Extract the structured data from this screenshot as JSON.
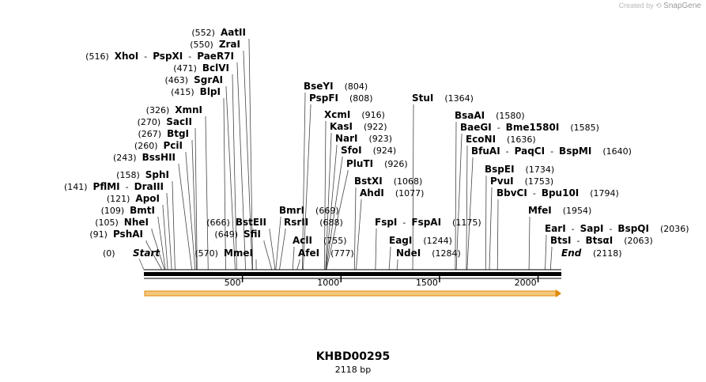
{
  "credit": {
    "prefix": "Created by",
    "brand": "SnapGene"
  },
  "sequence": {
    "name": "KHBD00295",
    "length_label": "2118 bp",
    "length": 2118
  },
  "axis": {
    "ticks": [
      500,
      1000,
      1500,
      2000
    ],
    "start_label": "Start",
    "start_pos": "(0)",
    "end_label": "End",
    "end_pos": "(2118)"
  },
  "feature": {
    "color": "#f5c77e",
    "outline": "#e08a00"
  },
  "labels": [
    {
      "names": [
        "PshAI"
      ],
      "pos": "(91)",
      "side": "left"
    },
    {
      "names": [
        "NheI"
      ],
      "pos": "(105)",
      "side": "left"
    },
    {
      "names": [
        "BmtI"
      ],
      "pos": "(109)",
      "side": "left"
    },
    {
      "names": [
        "ApoI"
      ],
      "pos": "(121)",
      "side": "left"
    },
    {
      "names": [
        "PflMI",
        "DraIII"
      ],
      "pos": "(141)",
      "side": "left"
    },
    {
      "names": [
        "SphI"
      ],
      "pos": "(158)",
      "side": "left"
    },
    {
      "names": [
        "BssHII"
      ],
      "pos": "(243)",
      "side": "left"
    },
    {
      "names": [
        "PciI"
      ],
      "pos": "(260)",
      "side": "left"
    },
    {
      "names": [
        "BtgI"
      ],
      "pos": "(267)",
      "side": "left"
    },
    {
      "names": [
        "SacII"
      ],
      "pos": "(270)",
      "side": "left"
    },
    {
      "names": [
        "XmnI"
      ],
      "pos": "(326)",
      "side": "left"
    },
    {
      "names": [
        "BlpI"
      ],
      "pos": "(415)",
      "side": "left"
    },
    {
      "names": [
        "SgrAI"
      ],
      "pos": "(463)",
      "side": "left"
    },
    {
      "names": [
        "BclVI"
      ],
      "pos": "(471)",
      "side": "left"
    },
    {
      "names": [
        "XhoI",
        "PspXI",
        "PaeR7I"
      ],
      "pos": "(516)",
      "side": "left"
    },
    {
      "names": [
        "ZraI"
      ],
      "pos": "(550)",
      "side": "left"
    },
    {
      "names": [
        "AatII"
      ],
      "pos": "(552)",
      "side": "left"
    },
    {
      "names": [
        "MmeI"
      ],
      "pos": "(570)",
      "side": "left"
    },
    {
      "names": [
        "SfiI"
      ],
      "pos": "(649)",
      "side": "left"
    },
    {
      "names": [
        "BstEII"
      ],
      "pos": "(666)",
      "side": "left"
    },
    {
      "names": [
        "BmrI"
      ],
      "pos": "(669)",
      "side": "right"
    },
    {
      "names": [
        "RsrII"
      ],
      "pos": "(688)",
      "side": "right"
    },
    {
      "names": [
        "AclI"
      ],
      "pos": "(755)",
      "side": "right"
    },
    {
      "names": [
        "AfeI"
      ],
      "pos": "(777)",
      "side": "right"
    },
    {
      "names": [
        "BseYI"
      ],
      "pos": "(804)",
      "side": "right"
    },
    {
      "names": [
        "PspFI"
      ],
      "pos": "(808)",
      "side": "right"
    },
    {
      "names": [
        "XcmI"
      ],
      "pos": "(916)",
      "side": "right"
    },
    {
      "names": [
        "KasI"
      ],
      "pos": "(922)",
      "side": "right"
    },
    {
      "names": [
        "NarI"
      ],
      "pos": "(923)",
      "side": "right"
    },
    {
      "names": [
        "SfoI"
      ],
      "pos": "(924)",
      "side": "right"
    },
    {
      "names": [
        "PluTI"
      ],
      "pos": "(926)",
      "side": "right"
    },
    {
      "names": [
        "BstXI"
      ],
      "pos": "(1068)",
      "side": "right"
    },
    {
      "names": [
        "AhdI"
      ],
      "pos": "(1077)",
      "side": "right"
    },
    {
      "names": [
        "FspI",
        "FspAI"
      ],
      "pos": "(1175)",
      "side": "right"
    },
    {
      "names": [
        "EagI"
      ],
      "pos": "(1244)",
      "side": "right"
    },
    {
      "names": [
        "NdeI"
      ],
      "pos": "(1284)",
      "side": "right"
    },
    {
      "names": [
        "StuI"
      ],
      "pos": "(1364)",
      "side": "right"
    },
    {
      "names": [
        "BsaAI"
      ],
      "pos": "(1580)",
      "side": "right"
    },
    {
      "names": [
        "BaeGI",
        "Bme1580I"
      ],
      "pos": "(1585)",
      "side": "right"
    },
    {
      "names": [
        "EcoNI"
      ],
      "pos": "(1636)",
      "side": "right"
    },
    {
      "names": [
        "BfuAI",
        "PaqCI",
        "BspMI"
      ],
      "pos": "(1640)",
      "side": "right"
    },
    {
      "names": [
        "BspEI"
      ],
      "pos": "(1734)",
      "side": "right"
    },
    {
      "names": [
        "PvuI"
      ],
      "pos": "(1753)",
      "side": "right"
    },
    {
      "names": [
        "BbvCI",
        "Bpu10I"
      ],
      "pos": "(1794)",
      "side": "right"
    },
    {
      "names": [
        "MfeI"
      ],
      "pos": "(1954)",
      "side": "right"
    },
    {
      "names": [
        "EarI",
        "SapI",
        "BspQI"
      ],
      "pos": "(2036)",
      "side": "right"
    },
    {
      "names": [
        "BtsI",
        "BtsαI"
      ],
      "pos": "(2063)",
      "side": "right"
    }
  ]
}
